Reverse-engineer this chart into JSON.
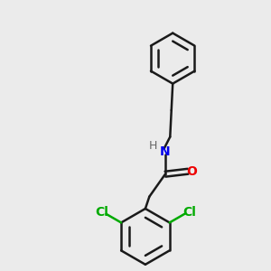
{
  "bg_color": "#ebebeb",
  "bond_color": "#1a1a1a",
  "N_color": "#0000ee",
  "O_color": "#ee0000",
  "Cl_color": "#00aa00",
  "H_color": "#666666",
  "bond_width": 1.8,
  "font_size": 10,
  "fig_size": [
    3.0,
    3.0
  ],
  "dpi": 100,
  "xlim": [
    0,
    10
  ],
  "ylim": [
    0,
    10
  ]
}
